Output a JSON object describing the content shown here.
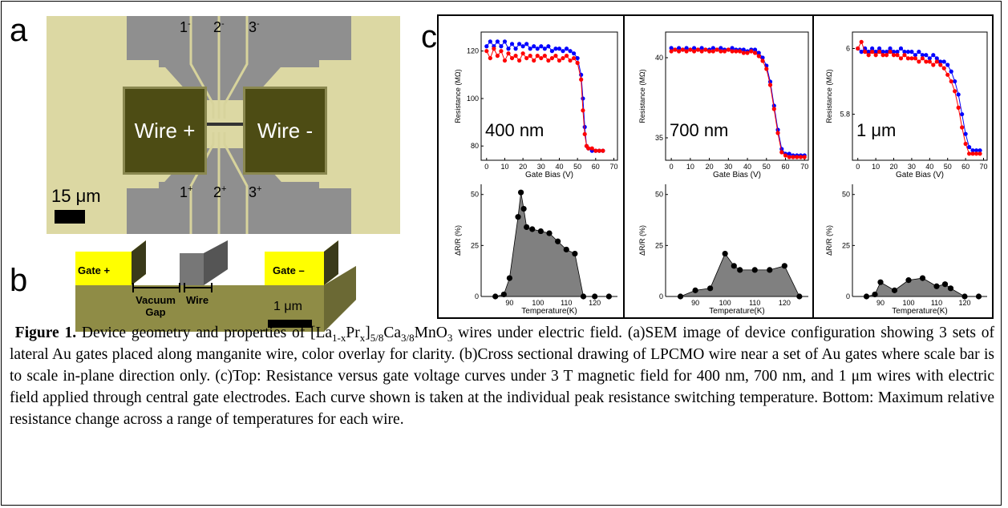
{
  "panels": {
    "a": {
      "letter": "a",
      "wire_plus": "Wire +",
      "wire_minus": "Wire -",
      "electrodes_top": [
        {
          "num": "1",
          "sign": "-"
        },
        {
          "num": "2",
          "sign": "-"
        },
        {
          "num": "3",
          "sign": "-"
        }
      ],
      "electrodes_bottom": [
        {
          "num": "1",
          "sign": "+"
        },
        {
          "num": "2",
          "sign": "+"
        },
        {
          "num": "3",
          "sign": "+"
        }
      ],
      "scale": "15 μm",
      "colors": {
        "background": "#dcd8a3",
        "pads": "#4d4c14",
        "gray_leads": "#8f8f8f"
      }
    },
    "b": {
      "letter": "b",
      "gate_plus": "Gate +",
      "gate_minus": "Gate –",
      "vacuum_gap": "Vacuum Gap",
      "wire": "Wire",
      "scale": "1 μm",
      "colors": {
        "gate": "#ffff00",
        "substrate": "#8f8c46",
        "wire": "#777777"
      }
    },
    "c": {
      "letter": "c"
    }
  },
  "chart_data": [
    {
      "type": "line",
      "panel": "c-top-1",
      "label": "400 nm",
      "xlabel": "Gate Bias (V)",
      "ylabel": "Resistance (MΩ)",
      "xlim": [
        -3,
        72
      ],
      "ylim": [
        74,
        128
      ],
      "xticks": [
        0,
        10,
        20,
        30,
        40,
        50,
        60,
        70
      ],
      "yticks": [
        80,
        100,
        120
      ],
      "series": [
        {
          "color": "#0000ff",
          "x": [
            0,
            2,
            4,
            6,
            8,
            10,
            12,
            14,
            16,
            18,
            20,
            22,
            24,
            26,
            28,
            30,
            32,
            34,
            36,
            38,
            40,
            42,
            44,
            46,
            48,
            50,
            52,
            53,
            54,
            55,
            56,
            58,
            60,
            62,
            64
          ],
          "y": [
            122,
            124,
            122,
            124,
            122,
            124,
            121,
            123,
            121,
            123,
            122,
            123,
            121,
            122,
            121,
            122,
            121,
            122,
            120,
            121,
            121,
            120,
            121,
            120,
            119,
            117,
            110,
            100,
            88,
            80,
            79,
            78,
            78,
            78,
            78
          ]
        },
        {
          "color": "#ff0000",
          "x": [
            0,
            2,
            4,
            6,
            8,
            10,
            12,
            14,
            16,
            18,
            20,
            22,
            24,
            26,
            28,
            30,
            32,
            34,
            36,
            38,
            40,
            42,
            44,
            46,
            48,
            50,
            52,
            53,
            54,
            55,
            56,
            58,
            60,
            62,
            64
          ],
          "y": [
            120,
            117,
            121,
            118,
            120,
            116,
            119,
            117,
            118,
            116,
            119,
            117,
            118,
            116,
            118,
            117,
            118,
            116,
            117,
            118,
            116,
            117,
            118,
            116,
            117,
            115,
            108,
            95,
            85,
            80,
            79,
            79,
            78,
            78,
            78
          ]
        }
      ]
    },
    {
      "type": "line",
      "panel": "c-top-2",
      "label": "700 nm",
      "xlabel": "Gate Bias (V)",
      "ylabel": "Resistance (MΩ)",
      "xlim": [
        -3,
        72
      ],
      "ylim": [
        33.6,
        41.6
      ],
      "xticks": [
        0,
        10,
        20,
        30,
        40,
        50,
        60,
        70
      ],
      "yticks": [
        35,
        40
      ],
      "series": [
        {
          "color": "#0000ff",
          "x": [
            0,
            2,
            4,
            6,
            8,
            10,
            12,
            14,
            16,
            18,
            20,
            22,
            24,
            26,
            28,
            30,
            32,
            34,
            36,
            38,
            40,
            42,
            44,
            46,
            48,
            50,
            52,
            54,
            56,
            58,
            60,
            62,
            64,
            66,
            68,
            70
          ],
          "y": [
            40.6,
            40.5,
            40.6,
            40.5,
            40.6,
            40.5,
            40.6,
            40.5,
            40.6,
            40.5,
            40.5,
            40.6,
            40.5,
            40.6,
            40.5,
            40.5,
            40.6,
            40.5,
            40.5,
            40.5,
            40.4,
            40.5,
            40.5,
            40.3,
            40.0,
            39.5,
            38.5,
            37.0,
            35.5,
            34.3,
            34.0,
            34.0,
            33.9,
            33.9,
            33.9,
            33.9
          ]
        },
        {
          "color": "#ff0000",
          "x": [
            0,
            2,
            4,
            6,
            8,
            10,
            12,
            14,
            16,
            18,
            20,
            22,
            24,
            26,
            28,
            30,
            32,
            34,
            36,
            38,
            40,
            42,
            44,
            46,
            48,
            50,
            52,
            54,
            56,
            58,
            60,
            62,
            64,
            66,
            68,
            70
          ],
          "y": [
            40.4,
            40.5,
            40.4,
            40.5,
            40.4,
            40.5,
            40.4,
            40.5,
            40.4,
            40.5,
            40.4,
            40.4,
            40.5,
            40.4,
            40.4,
            40.5,
            40.4,
            40.4,
            40.4,
            40.3,
            40.3,
            40.4,
            40.3,
            40.1,
            39.8,
            39.3,
            38.3,
            36.8,
            35.3,
            34.1,
            33.9,
            33.8,
            33.8,
            33.8,
            33.8,
            33.8
          ]
        }
      ]
    },
    {
      "type": "line",
      "panel": "c-top-3",
      "label": "1 μm",
      "xlabel": "Gate Bias (V)",
      "ylabel": "Resistance (MΩ)",
      "xlim": [
        -3,
        72
      ],
      "ylim": [
        5.66,
        6.05
      ],
      "xticks": [
        0,
        10,
        20,
        30,
        40,
        50,
        60,
        70
      ],
      "yticks": [
        5.8,
        6.0
      ],
      "series": [
        {
          "color": "#0000ff",
          "x": [
            0,
            2,
            4,
            6,
            8,
            10,
            12,
            14,
            16,
            18,
            20,
            22,
            24,
            26,
            28,
            30,
            32,
            34,
            36,
            38,
            40,
            42,
            44,
            46,
            48,
            50,
            52,
            54,
            56,
            58,
            60,
            62,
            64,
            66,
            68
          ],
          "y": [
            6.0,
            5.99,
            6.0,
            5.99,
            6.0,
            5.99,
            6.0,
            5.99,
            5.99,
            6.0,
            5.99,
            5.99,
            6.0,
            5.99,
            5.99,
            5.99,
            5.98,
            5.99,
            5.98,
            5.98,
            5.97,
            5.98,
            5.97,
            5.96,
            5.96,
            5.95,
            5.93,
            5.9,
            5.86,
            5.8,
            5.74,
            5.7,
            5.69,
            5.69,
            5.69
          ]
        },
        {
          "color": "#ff0000",
          "x": [
            0,
            2,
            4,
            6,
            8,
            10,
            12,
            14,
            16,
            18,
            20,
            22,
            24,
            26,
            28,
            30,
            32,
            34,
            36,
            38,
            40,
            42,
            44,
            46,
            48,
            50,
            52,
            54,
            56,
            58,
            60,
            62,
            64,
            66,
            68
          ],
          "y": [
            6.0,
            6.02,
            5.99,
            5.98,
            5.99,
            5.98,
            5.99,
            5.98,
            5.98,
            5.99,
            5.98,
            5.98,
            5.97,
            5.98,
            5.97,
            5.97,
            5.97,
            5.96,
            5.97,
            5.96,
            5.96,
            5.95,
            5.96,
            5.95,
            5.94,
            5.92,
            5.9,
            5.87,
            5.82,
            5.76,
            5.71,
            5.68,
            5.68,
            5.68,
            5.68
          ]
        }
      ]
    },
    {
      "type": "area",
      "panel": "c-bottom-1",
      "xlabel": "Temperature(K)",
      "ylabel": "ΔR/R (%)",
      "xlim": [
        80,
        128
      ],
      "ylim": [
        0,
        55
      ],
      "xticks": [
        90,
        100,
        110,
        120
      ],
      "yticks": [
        0,
        25,
        50
      ],
      "fill": "#808080",
      "x": [
        85,
        88,
        90,
        93,
        94,
        95,
        96,
        98,
        101,
        104,
        107,
        110,
        113,
        116,
        120,
        125
      ],
      "y": [
        0,
        1,
        9,
        39,
        51,
        43,
        34,
        33,
        32,
        31,
        27,
        23,
        21,
        0,
        0,
        0
      ]
    },
    {
      "type": "area",
      "panel": "c-bottom-2",
      "xlabel": "Temperature(K)",
      "ylabel": "ΔR/R (%)",
      "xlim": [
        80,
        128
      ],
      "ylim": [
        0,
        55
      ],
      "xticks": [
        90,
        100,
        110,
        120
      ],
      "yticks": [
        0,
        25,
        50
      ],
      "fill": "#808080",
      "x": [
        85,
        90,
        95,
        100,
        103,
        105,
        110,
        115,
        120,
        125
      ],
      "y": [
        0,
        3,
        4,
        21,
        15,
        13,
        13,
        13,
        15,
        0
      ]
    },
    {
      "type": "area",
      "panel": "c-bottom-3",
      "xlabel": "Temperature(K)",
      "ylabel": "ΔR/R (%)",
      "xlim": [
        80,
        128
      ],
      "ylim": [
        0,
        55
      ],
      "xticks": [
        90,
        100,
        110,
        120
      ],
      "yticks": [
        0,
        25,
        50
      ],
      "fill": "#808080",
      "x": [
        85,
        88,
        90,
        95,
        100,
        105,
        110,
        113,
        115,
        120,
        125
      ],
      "y": [
        0,
        1,
        7,
        3,
        8,
        9,
        5,
        6,
        4,
        0,
        0
      ]
    }
  ],
  "caption": {
    "label": "Figure 1.",
    "t1": " Device geometry and properties of [La",
    "s1": "1-x",
    "t2": "Pr",
    "s2": "x",
    "t3": "]",
    "s3": "5/8",
    "t4": "Ca",
    "s4": "3/8",
    "t5": "MnO",
    "s5": "3",
    "t6": " wires under electric field. (a)SEM image of device configuration showing 3 sets of lateral Au gates placed along manganite wire, color overlay for clarity. (b)Cross sectional drawing of LPCMO wire near a set of Au gates where scale bar is to scale in-plane direction only. (c)Top: Resistance versus gate voltage curves under 3 T magnetic field for 400 nm, 700 nm, and 1 μm wires with electric field applied through central gate electrodes. Each curve shown is taken at the individual peak resistance switching temperature. Bottom: Maximum relative resistance change across a range of temperatures for each wire."
  }
}
